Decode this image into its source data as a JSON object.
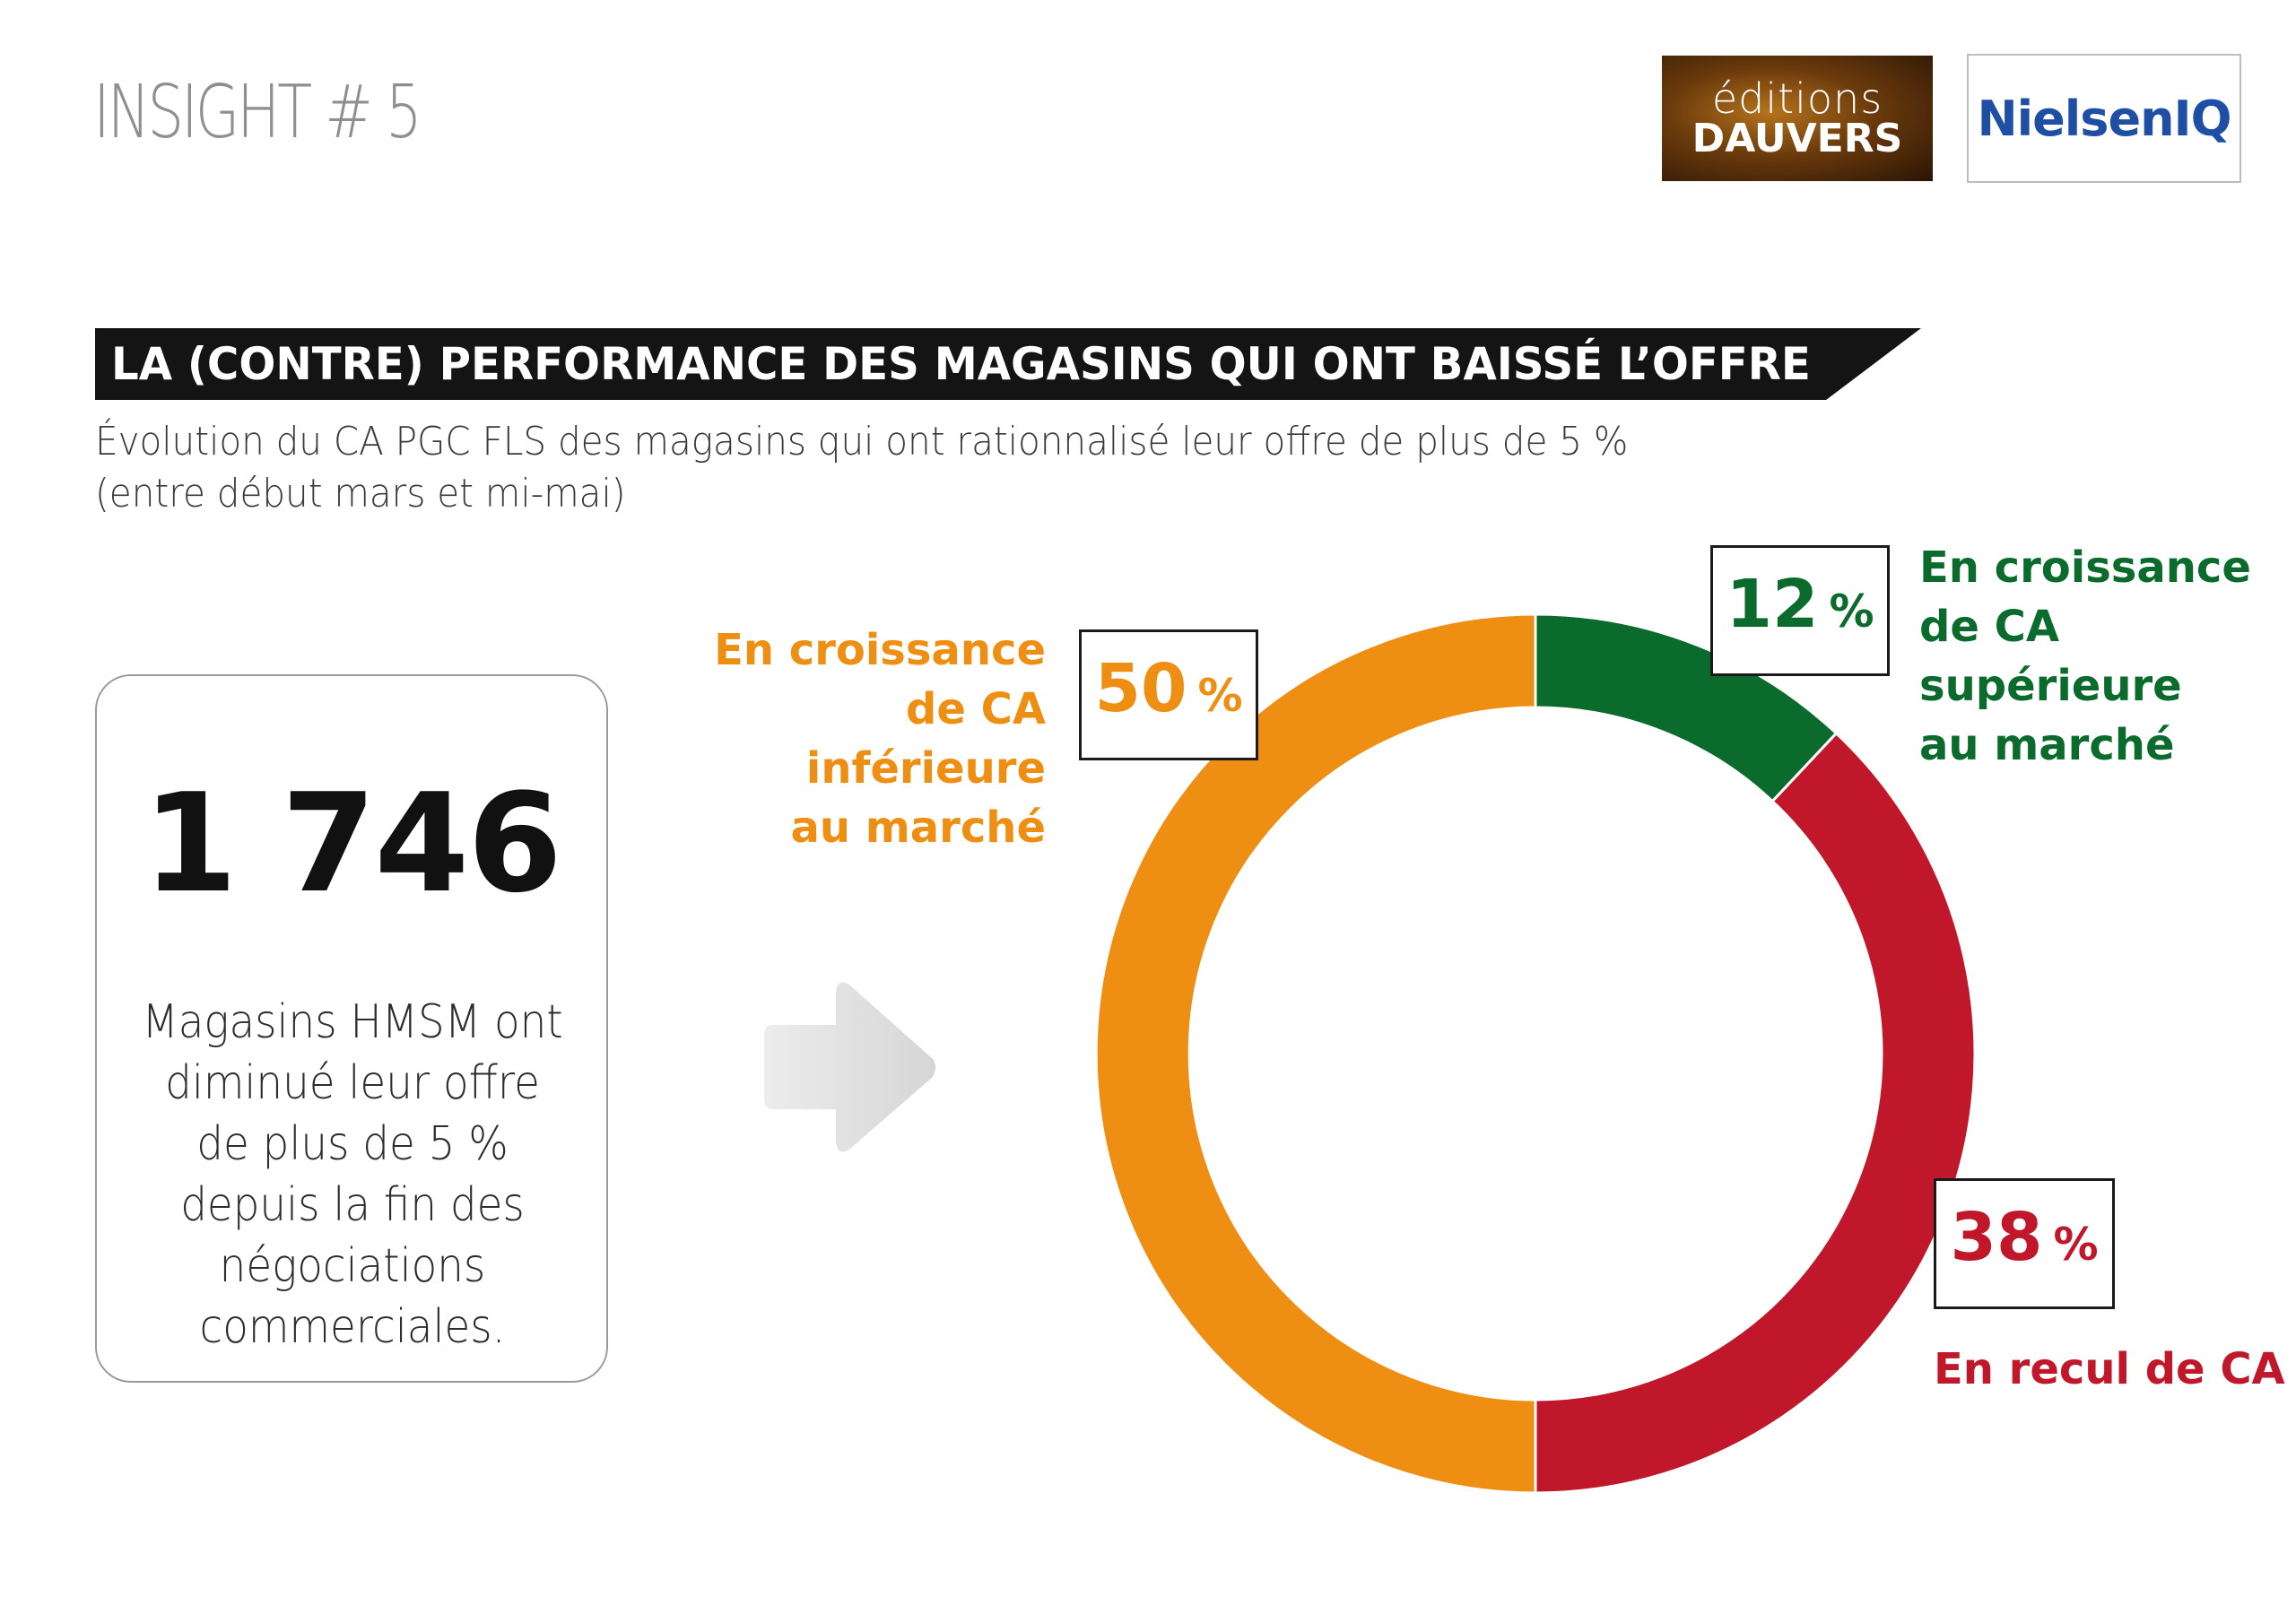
{
  "header": {
    "insight": "INSIGHT # 5",
    "logo_dauvers": {
      "line1": "éditions",
      "line2": "DAUVERS"
    },
    "logo_nielsen": "NielsenIQ"
  },
  "banner": {
    "title": "LA (CONTRE) PERFORMANCE DES MAGASINS QUI ONT BAISSÉ L’OFFRE"
  },
  "subtitle": {
    "line1": "Évolution du CA PGC FLS des magasins qui ont rationnalisé leur offre de plus de 5 %",
    "line2": "(entre début mars et mi-mai)"
  },
  "stat": {
    "number": "1 746",
    "description": "Magasins HMSM ont diminué leur offre de plus de 5 % depuis la fin des négociations commerciales."
  },
  "icons": {
    "arrow": "arrow-right-icon"
  },
  "chart_data": {
    "type": "pie",
    "variant": "donut",
    "title": "",
    "slices": [
      {
        "key": "green",
        "value": 12,
        "value_label": "12",
        "unit": "%",
        "label_lines": [
          "En croissance",
          "de CA",
          "supérieure",
          "au marché"
        ],
        "color": "#0b6b2c"
      },
      {
        "key": "red",
        "value": 38,
        "value_label": "38",
        "unit": "%",
        "label_lines": [
          "En recul de CA"
        ],
        "color": "#c0182a"
      },
      {
        "key": "orange",
        "value": 50,
        "value_label": "50",
        "unit": "%",
        "label_lines": [
          "En croissance",
          "de CA",
          "inférieure",
          "au marché"
        ],
        "color": "#ee8e12"
      }
    ]
  }
}
